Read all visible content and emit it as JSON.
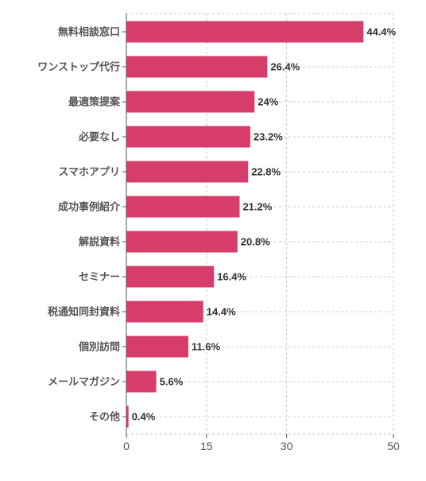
{
  "chart_data": {
    "type": "bar",
    "orientation": "horizontal",
    "categories": [
      "無料相談窓口",
      "ワンストップ代行",
      "最適策提案",
      "必要なし",
      "スマホアプリ",
      "成功事例紹介",
      "解説資料",
      "セミナー",
      "税通知同封資料",
      "個別訪問",
      "メールマガジン",
      "その他"
    ],
    "values": [
      44.4,
      26.4,
      24,
      23.2,
      22.8,
      21.2,
      20.8,
      16.4,
      14.4,
      11.6,
      5.6,
      0.4
    ],
    "value_labels": [
      "44.4%",
      "26.4%",
      "24%",
      "23.2%",
      "22.8%",
      "21.2%",
      "20.8%",
      "16.4%",
      "14.4%",
      "11.6%",
      "5.6%",
      "0.4%"
    ],
    "xlim": [
      0,
      50
    ],
    "x_ticks": [
      0,
      15,
      30,
      50
    ],
    "x_tick_labels": [
      "0",
      "15",
      "30",
      "50"
    ],
    "grid": true,
    "bar_color": "#d63d6b",
    "grid_color": "#c8c8c8"
  }
}
